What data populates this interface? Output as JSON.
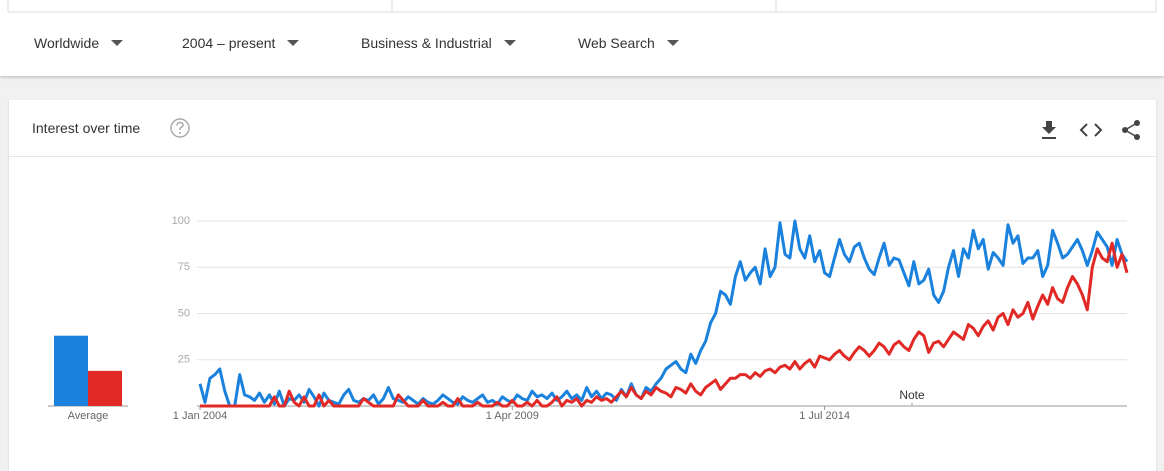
{
  "filters": [
    "Worldwide",
    "2004 – present",
    "Business & Industrial",
    "Web Search"
  ],
  "card_title": "Interest over time",
  "chart_data": {
    "type": "line",
    "categories": [
      "1 Jan 2004",
      null,
      null,
      null,
      null,
      null,
      null,
      null,
      null,
      null,
      null,
      null,
      null,
      null,
      null,
      null,
      null,
      null,
      null,
      null,
      null,
      null,
      null,
      null,
      null,
      null,
      null,
      null,
      null,
      null,
      null,
      null,
      null,
      null,
      null,
      null,
      null,
      null,
      null,
      null,
      null,
      null,
      null,
      null,
      null,
      null,
      null,
      null,
      null,
      null,
      null,
      null,
      null,
      null,
      null,
      null,
      null,
      null,
      null,
      null,
      null,
      null,
      null,
      "1 Apr 2009",
      null,
      null,
      null,
      null,
      null,
      null,
      null,
      null,
      null,
      null,
      null,
      null,
      null,
      null,
      null,
      null,
      null,
      null,
      null,
      null,
      null,
      null,
      null,
      null,
      null,
      null,
      null,
      null,
      null,
      null,
      null,
      null,
      null,
      null,
      null,
      null,
      null,
      null,
      null,
      null,
      null,
      null,
      null,
      null,
      null,
      null,
      null,
      null,
      null,
      null,
      null,
      null,
      null,
      null,
      null,
      null,
      null,
      null,
      null,
      null,
      null,
      null,
      "1 Jul 2014",
      null,
      null,
      null,
      null,
      null,
      null,
      null,
      null,
      null,
      null,
      null,
      null,
      null,
      null,
      null,
      null,
      null,
      null,
      null,
      null,
      null,
      null,
      null,
      null,
      null,
      null,
      null,
      null,
      null,
      null,
      null,
      null,
      null,
      null,
      null,
      null,
      null,
      null,
      null,
      null,
      null,
      null,
      null,
      null,
      null,
      null,
      null,
      null,
      null,
      null,
      null,
      null,
      null,
      null,
      null,
      null,
      null,
      null,
      null,
      null,
      null
    ],
    "series": [
      {
        "color": "#1a82dc",
        "average": 38,
        "values": [
          12,
          2,
          15,
          17,
          20,
          8,
          0,
          0,
          17,
          6,
          5,
          3,
          7,
          2,
          6,
          1,
          8,
          0,
          4,
          3,
          6,
          2,
          9,
          5,
          0,
          7,
          3,
          2,
          1,
          6,
          9,
          3,
          2,
          4,
          3,
          6,
          1,
          4,
          10,
          4,
          3,
          2,
          5,
          3,
          1,
          4,
          2,
          1,
          3,
          6,
          4,
          2,
          1,
          5,
          3,
          2,
          4,
          6,
          2,
          3,
          1,
          5,
          3,
          2,
          6,
          4,
          3,
          8,
          5,
          6,
          4,
          7,
          3,
          5,
          8,
          4,
          6,
          3,
          10,
          5,
          8,
          4,
          7,
          6,
          3,
          9,
          5,
          12,
          6,
          4,
          10,
          8,
          12,
          15,
          20,
          22,
          24,
          20,
          18,
          28,
          23,
          30,
          35,
          45,
          50,
          62,
          60,
          55,
          70,
          78,
          68,
          72,
          75,
          66,
          85,
          70,
          75,
          99,
          82,
          80,
          100,
          85,
          80,
          92,
          78,
          84,
          72,
          70,
          80,
          90,
          82,
          78,
          86,
          88,
          80,
          74,
          71,
          80,
          88,
          76,
          80,
          79,
          72,
          65,
          78,
          66,
          68,
          74,
          60,
          56,
          62,
          75,
          84,
          70,
          85,
          80,
          95,
          85,
          90,
          74,
          83,
          80,
          76,
          98,
          88,
          92,
          77,
          80,
          80,
          84,
          70,
          76,
          95,
          88,
          80,
          82,
          86,
          90,
          84,
          76,
          84,
          94,
          90,
          86,
          76,
          90,
          82,
          78
        ]
      },
      {
        "color": "#e12a26",
        "average": 19,
        "values": [
          0,
          0,
          0,
          0,
          0,
          0,
          0,
          0,
          0,
          0,
          0,
          0,
          0,
          0,
          0,
          5,
          0,
          0,
          8,
          2,
          0,
          5,
          0,
          0,
          6,
          0,
          3,
          0,
          0,
          0,
          0,
          0,
          0,
          4,
          2,
          0,
          0,
          0,
          0,
          0,
          6,
          3,
          0,
          0,
          0,
          3,
          0,
          0,
          0,
          2,
          0,
          0,
          4,
          0,
          0,
          0,
          2,
          0,
          0,
          0,
          2,
          0,
          0,
          3,
          0,
          0,
          2,
          0,
          3,
          0,
          0,
          2,
          5,
          0,
          3,
          2,
          4,
          0,
          3,
          2,
          5,
          3,
          4,
          2,
          5,
          8,
          5,
          10,
          6,
          4,
          8,
          6,
          10,
          8,
          7,
          5,
          10,
          9,
          7,
          12,
          8,
          6,
          10,
          12,
          14,
          9,
          12,
          15,
          15,
          17,
          17,
          15,
          18,
          16,
          19,
          20,
          18,
          21,
          22,
          20,
          24,
          20,
          23,
          25,
          21,
          27,
          26,
          25,
          28,
          30,
          27,
          25,
          29,
          32,
          30,
          27,
          30,
          34,
          32,
          28,
          33,
          35,
          32,
          30,
          36,
          40,
          38,
          29,
          34,
          35,
          32,
          36,
          40,
          38,
          36,
          44,
          42,
          38,
          43,
          46,
          41,
          48,
          50,
          44,
          52,
          48,
          50,
          56,
          47,
          54,
          60,
          55,
          64,
          58,
          56,
          64,
          70,
          66,
          60,
          52,
          75,
          85,
          80,
          78,
          88,
          75,
          82,
          72
        ]
      }
    ],
    "average_label": "Average",
    "annotation": "Note",
    "ylim": [
      0,
      100
    ],
    "yticks": [
      25,
      50,
      75,
      100
    ],
    "grid": true
  }
}
